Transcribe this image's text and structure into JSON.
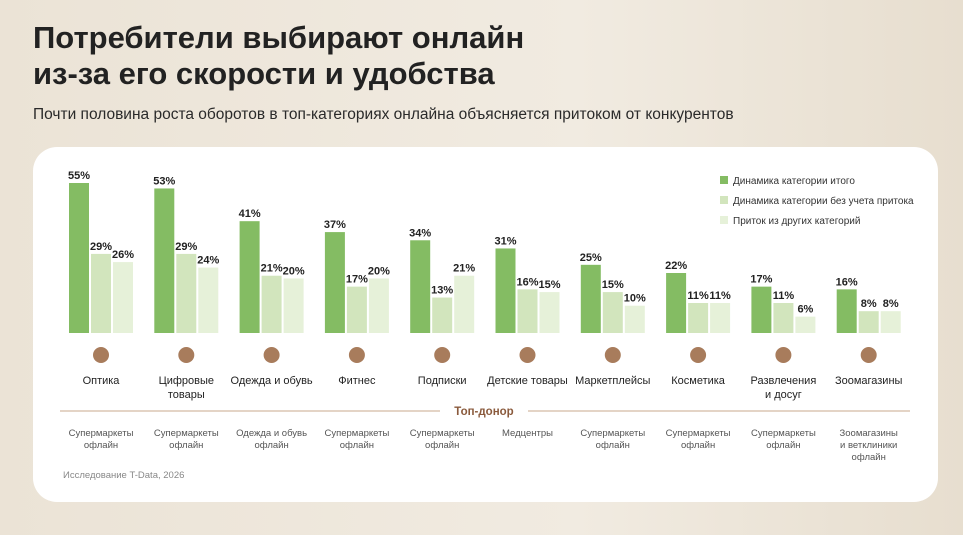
{
  "chart_data": {
    "type": "bar",
    "title": "Потребители выбирают онлайн\nиз-за его скорости и удобства",
    "subtitle": "Почти половина роста оборотов в топ-категориях онлайна объясняется притоком от конкурентов",
    "categories": [
      "Оптика",
      "Цифровые\nтовары",
      "Одежда и обувь",
      "Фитнес",
      "Подписки",
      "Детские товары",
      "Маркетплейсы",
      "Косметика",
      "Развлечения\nи досуг",
      "Зоомагазины"
    ],
    "series": [
      {
        "name": "Динамика категории итого",
        "color": "#84bc63",
        "values": [
          55,
          53,
          41,
          37,
          34,
          31,
          25,
          22,
          17,
          16
        ],
        "value_labels": [
          "55%",
          "53%",
          "41%",
          "37%",
          "34%",
          "31%",
          "25%",
          "22%",
          "17%",
          "16%"
        ]
      },
      {
        "name": "Динамика категории без учета притока",
        "color": "#d2e5bd",
        "values": [
          29,
          29,
          21,
          17,
          13,
          16,
          15,
          11,
          11,
          8
        ],
        "value_labels": [
          "29%",
          "29%",
          "21%",
          "17%",
          "13%",
          "16%",
          "15%",
          "11%",
          "11%",
          "8%"
        ]
      },
      {
        "name": "Приток из других категорий",
        "color": "#e6f1d9",
        "values": [
          26,
          24,
          20,
          20,
          21,
          15,
          10,
          11,
          6,
          8
        ],
        "value_labels": [
          "26%",
          "24%",
          "20%",
          "20%",
          "21%",
          "15%",
          "10%",
          "11%",
          "6%",
          "8%"
        ]
      }
    ],
    "donor_title": "Топ-донор",
    "donors": [
      "Супермаркеты\nофлайн",
      "Супермаркеты\nофлайн",
      "Одежда и обувь\nофлайн",
      "Супермаркеты\nофлайн",
      "Супермаркеты\nофлайн",
      "Медцентры",
      "Супермаркеты\nофлайн",
      "Супермаркеты\nофлайн",
      "Супермаркеты\nофлайн",
      "Зоомагазины\nи ветклиники\nофлайн"
    ],
    "source": "Исследование T-Data, 2026",
    "legend": "top-right"
  }
}
